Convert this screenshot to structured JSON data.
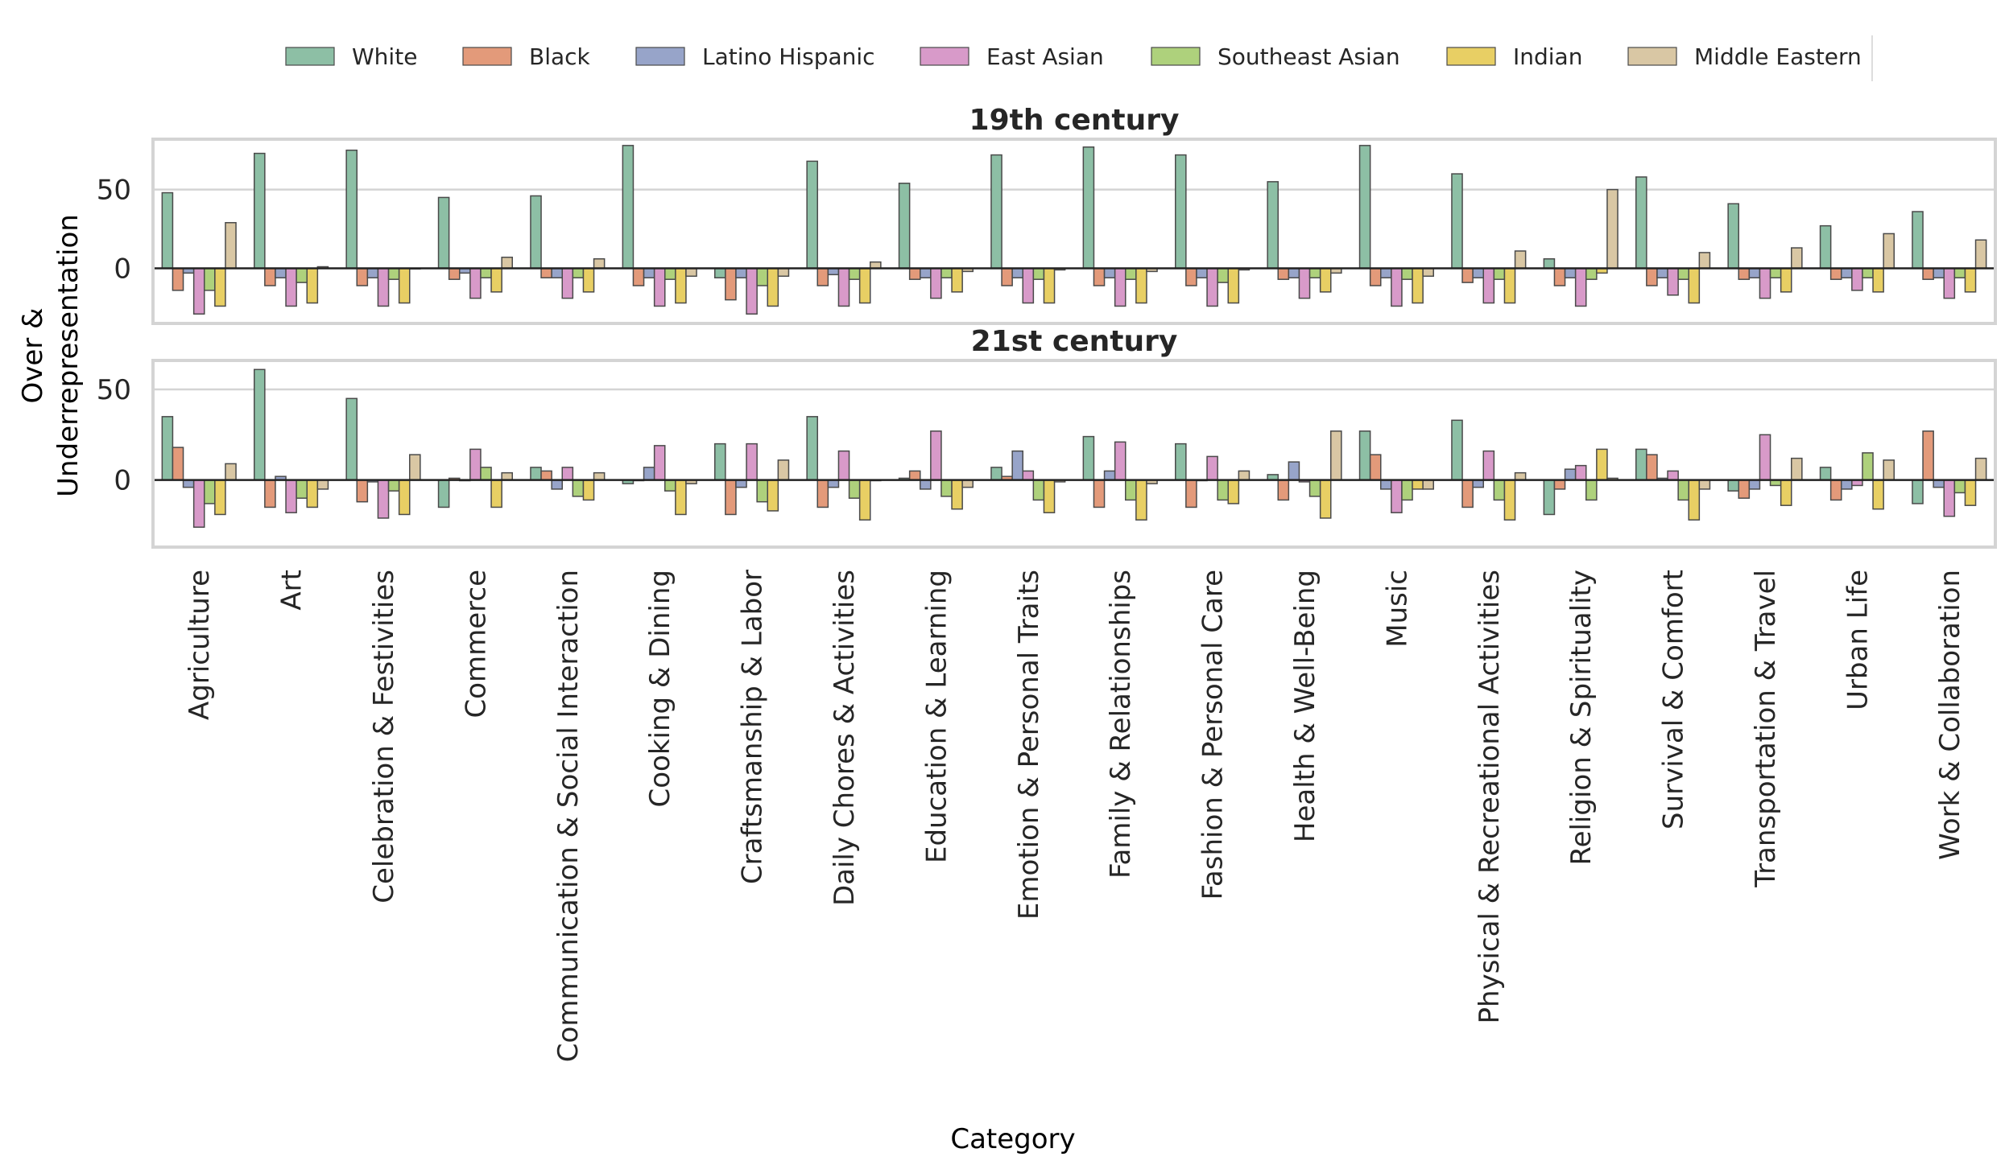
{
  "chart_data": {
    "type": "bar",
    "ylabel": "Over &\nUnderrepresentation",
    "xlabel": "Category",
    "legend_position": "top-center",
    "grid": true,
    "categories": [
      "Agriculture",
      "Art",
      "Celebration & Festivities",
      "Commerce",
      "Communication & Social Interaction",
      "Cooking & Dining",
      "Craftsmanship & Labor",
      "Daily Chores & Activities",
      "Education & Learning",
      "Emotion & Personal Traits",
      "Family & Relationships",
      "Fashion & Personal Care",
      "Health & Well-Being",
      "Music",
      "Physical & Recreational Activities",
      "Religion & Spirituality",
      "Survival & Comfort",
      "Transportation & Travel",
      "Urban Life",
      "Work & Collaboration"
    ],
    "series_names": [
      "White",
      "Black",
      "Latino Hispanic",
      "East Asian",
      "Southeast Asian",
      "Indian",
      "Middle Eastern"
    ],
    "colors": [
      "#8dbfa5",
      "#e39a7a",
      "#97a4c9",
      "#d89ac9",
      "#aed17c",
      "#e8cf64",
      "#d9c7a4"
    ],
    "panels": [
      {
        "title": "19th century",
        "ylim": [
          -35,
          82
        ],
        "yticks": [
          0,
          50
        ],
        "series": [
          {
            "name": "White",
            "values": [
              48,
              73,
              75,
              45,
              46,
              78,
              -6,
              68,
              54,
              72,
              77,
              72,
              55,
              78,
              60,
              6,
              58,
              41,
              27,
              36
            ]
          },
          {
            "name": "Black",
            "values": [
              -14,
              -11,
              -11,
              -7,
              -6,
              -11,
              -20,
              -11,
              -7,
              -11,
              -11,
              -11,
              -7,
              -11,
              -9,
              -11,
              -11,
              -7,
              -7,
              -7
            ]
          },
          {
            "name": "Latino Hispanic",
            "values": [
              -3,
              -6,
              -6,
              -3,
              -6,
              -6,
              -6,
              -4,
              -6,
              -6,
              -6,
              -6,
              -6,
              -6,
              -6,
              -6,
              -6,
              -6,
              -6,
              -6
            ]
          },
          {
            "name": "East Asian",
            "values": [
              -29,
              -24,
              -24,
              -19,
              -19,
              -24,
              -29,
              -24,
              -19,
              -22,
              -24,
              -24,
              -19,
              -24,
              -22,
              -24,
              -17,
              -19,
              -14,
              -19
            ]
          },
          {
            "name": "Southeast Asian",
            "values": [
              -14,
              -9,
              -7,
              -6,
              -6,
              -7,
              -11,
              -7,
              -6,
              -7,
              -7,
              -9,
              -6,
              -7,
              -7,
              -7,
              -7,
              -6,
              -6,
              -6
            ]
          },
          {
            "name": "Indian",
            "values": [
              -24,
              -22,
              -22,
              -15,
              -15,
              -22,
              -24,
              -22,
              -15,
              -22,
              -22,
              -22,
              -15,
              -22,
              -22,
              -3,
              -22,
              -15,
              -15,
              -15
            ]
          },
          {
            "name": "Middle Eastern",
            "values": [
              29,
              1,
              0,
              7,
              6,
              -5,
              -5,
              4,
              -2,
              -1,
              -2,
              -1,
              -3,
              -5,
              11,
              50,
              10,
              13,
              22,
              18
            ]
          }
        ]
      },
      {
        "title": "21st century",
        "ylim": [
          -37,
          66
        ],
        "yticks": [
          0,
          50
        ],
        "series": [
          {
            "name": "White",
            "values": [
              35,
              61,
              45,
              -15,
              7,
              -2,
              20,
              35,
              1,
              7,
              24,
              20,
              3,
              27,
              33,
              -19,
              17,
              -6,
              7,
              -13
            ]
          },
          {
            "name": "Black",
            "values": [
              18,
              -15,
              -12,
              1,
              5,
              0,
              -19,
              -15,
              5,
              2,
              -15,
              -15,
              -11,
              14,
              -15,
              -5,
              14,
              -10,
              -11,
              27
            ]
          },
          {
            "name": "Latino Hispanic",
            "values": [
              -4,
              2,
              -1,
              0,
              -5,
              7,
              -4,
              -4,
              -5,
              16,
              5,
              0,
              10,
              -5,
              -4,
              6,
              1,
              -5,
              -5,
              -4
            ]
          },
          {
            "name": "East Asian",
            "values": [
              -26,
              -18,
              -21,
              17,
              7,
              19,
              20,
              16,
              27,
              5,
              21,
              13,
              -1,
              -18,
              16,
              8,
              5,
              25,
              -3,
              -20
            ]
          },
          {
            "name": "Southeast Asian",
            "values": [
              -13,
              -10,
              -6,
              7,
              -9,
              -6,
              -12,
              -10,
              -9,
              -11,
              -11,
              -11,
              -9,
              -11,
              -11,
              -11,
              -11,
              -3,
              15,
              -7
            ]
          },
          {
            "name": "Indian",
            "values": [
              -19,
              -15,
              -19,
              -15,
              -11,
              -19,
              -17,
              -22,
              -16,
              -18,
              -22,
              -13,
              -21,
              -5,
              -22,
              17,
              -22,
              -14,
              -16,
              -14
            ]
          },
          {
            "name": "Middle Eastern",
            "values": [
              9,
              -5,
              14,
              4,
              4,
              -2,
              11,
              0,
              -4,
              -1,
              -2,
              5,
              27,
              -5,
              4,
              1,
              -5,
              12,
              11,
              12
            ]
          }
        ]
      }
    ]
  }
}
